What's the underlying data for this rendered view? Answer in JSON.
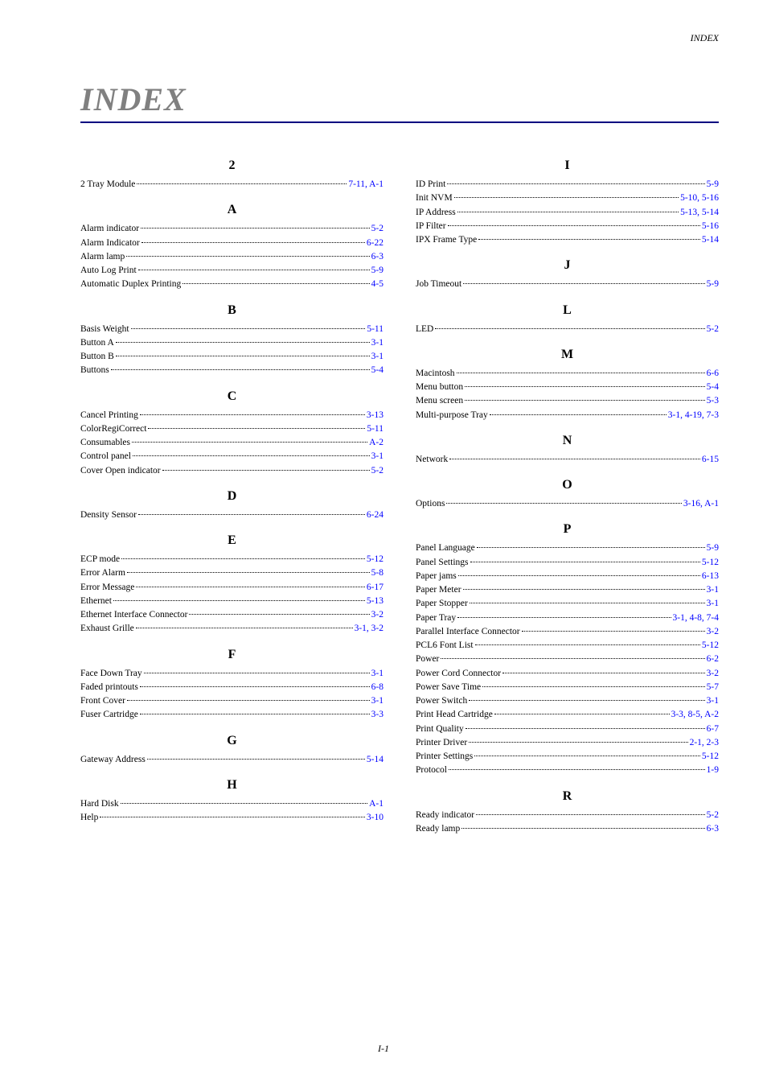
{
  "header_label": "INDEX",
  "title": "INDEX",
  "footer": "I-1",
  "colors": {
    "title_color": "#808080",
    "rule_color": "#000080",
    "link_color": "#0000ff",
    "text_color": "#000000",
    "background": "#ffffff"
  },
  "typography": {
    "title_fontsize": 40,
    "section_fontsize": 16,
    "entry_fontsize": 11.5,
    "header_fontsize": 12,
    "footer_fontsize": 12,
    "font_family": "Times New Roman"
  },
  "left_sections": [
    {
      "letter": "2",
      "entries": [
        {
          "term": "2 Tray Module",
          "pages": "7-11, A-1"
        }
      ]
    },
    {
      "letter": "A",
      "entries": [
        {
          "term": "Alarm indicator",
          "pages": "5-2"
        },
        {
          "term": "Alarm Indicator",
          "pages": "6-22"
        },
        {
          "term": "Alarm lamp",
          "pages": "6-3"
        },
        {
          "term": "Auto Log Print",
          "pages": "5-9"
        },
        {
          "term": "Automatic Duplex Printing",
          "pages": "4-5"
        }
      ]
    },
    {
      "letter": "B",
      "entries": [
        {
          "term": "Basis Weight",
          "pages": "5-11"
        },
        {
          "term": "Button A",
          "pages": "3-1"
        },
        {
          "term": "Button B",
          "pages": "3-1"
        },
        {
          "term": "Buttons",
          "pages": "5-4"
        }
      ]
    },
    {
      "letter": "C",
      "entries": [
        {
          "term": "Cancel Printing",
          "pages": "3-13"
        },
        {
          "term": "ColorRegiCorrect",
          "pages": "5-11"
        },
        {
          "term": "Consumables",
          "pages": "A-2"
        },
        {
          "term": "Control panel",
          "pages": "3-1"
        },
        {
          "term": "Cover Open indicator",
          "pages": "5-2"
        }
      ]
    },
    {
      "letter": "D",
      "entries": [
        {
          "term": "Density Sensor",
          "pages": "6-24"
        }
      ]
    },
    {
      "letter": "E",
      "entries": [
        {
          "term": "ECP mode",
          "pages": "5-12"
        },
        {
          "term": "Error Alarm",
          "pages": "5-8"
        },
        {
          "term": "Error Message",
          "pages": "6-17"
        },
        {
          "term": "Ethernet",
          "pages": "5-13"
        },
        {
          "term": "Ethernet Interface Connector",
          "pages": "3-2"
        },
        {
          "term": "Exhaust Grille",
          "pages": "3-1, 3-2"
        }
      ]
    },
    {
      "letter": "F",
      "entries": [
        {
          "term": "Face Down Tray",
          "pages": "3-1"
        },
        {
          "term": "Faded printouts",
          "pages": "6-8"
        },
        {
          "term": "Front Cover",
          "pages": "3-1"
        },
        {
          "term": "Fuser Cartridge",
          "pages": "3-3"
        }
      ]
    },
    {
      "letter": "G",
      "entries": [
        {
          "term": "Gateway Address",
          "pages": "5-14"
        }
      ]
    },
    {
      "letter": "H",
      "entries": [
        {
          "term": "Hard Disk",
          "pages": "A-1"
        },
        {
          "term": "Help",
          "pages": "3-10"
        }
      ]
    }
  ],
  "right_sections": [
    {
      "letter": "I",
      "entries": [
        {
          "term": "ID Print",
          "pages": "5-9"
        },
        {
          "term": "Init NVM",
          "pages": "5-10, 5-16"
        },
        {
          "term": "IP Address",
          "pages": "5-13, 5-14"
        },
        {
          "term": "IP Filter",
          "pages": "5-16"
        },
        {
          "term": "IPX Frame Type",
          "pages": "5-14"
        }
      ]
    },
    {
      "letter": "J",
      "entries": [
        {
          "term": "Job Timeout",
          "pages": "5-9"
        }
      ]
    },
    {
      "letter": "L",
      "entries": [
        {
          "term": "LED",
          "pages": "5-2"
        }
      ]
    },
    {
      "letter": "M",
      "entries": [
        {
          "term": "Macintosh",
          "pages": "6-6"
        },
        {
          "term": "Menu button",
          "pages": "5-4"
        },
        {
          "term": "Menu screen",
          "pages": "5-3"
        },
        {
          "term": "Multi-purpose Tray",
          "pages": "3-1, 4-19, 7-3"
        }
      ]
    },
    {
      "letter": "N",
      "entries": [
        {
          "term": "Network",
          "pages": "6-15"
        }
      ]
    },
    {
      "letter": "O",
      "entries": [
        {
          "term": "Options",
          "pages": "3-16, A-1"
        }
      ]
    },
    {
      "letter": "P",
      "entries": [
        {
          "term": "Panel Language",
          "pages": "5-9"
        },
        {
          "term": "Panel Settings",
          "pages": "5-12"
        },
        {
          "term": "Paper jams",
          "pages": "6-13"
        },
        {
          "term": "Paper Meter",
          "pages": "3-1"
        },
        {
          "term": "Paper Stopper",
          "pages": "3-1"
        },
        {
          "term": "Paper Tray",
          "pages": "3-1, 4-8, 7-4"
        },
        {
          "term": "Parallel Interface Connector",
          "pages": "3-2"
        },
        {
          "term": "PCL6 Font List",
          "pages": "5-12"
        },
        {
          "term": "Power",
          "pages": "6-2"
        },
        {
          "term": "Power Cord Connector",
          "pages": "3-2"
        },
        {
          "term": "Power Save Time",
          "pages": "5-7"
        },
        {
          "term": "Power Switch",
          "pages": "3-1"
        },
        {
          "term": "Print Head Cartridge",
          "pages": "3-3, 8-5, A-2"
        },
        {
          "term": "Print Quality",
          "pages": "6-7"
        },
        {
          "term": "Printer Driver",
          "pages": "2-1, 2-3"
        },
        {
          "term": "Printer Settings",
          "pages": "5-12"
        },
        {
          "term": "Protocol",
          "pages": "1-9"
        }
      ]
    },
    {
      "letter": "R",
      "entries": [
        {
          "term": "Ready indicator",
          "pages": "5-2"
        },
        {
          "term": "Ready lamp",
          "pages": "6-3"
        }
      ]
    }
  ]
}
